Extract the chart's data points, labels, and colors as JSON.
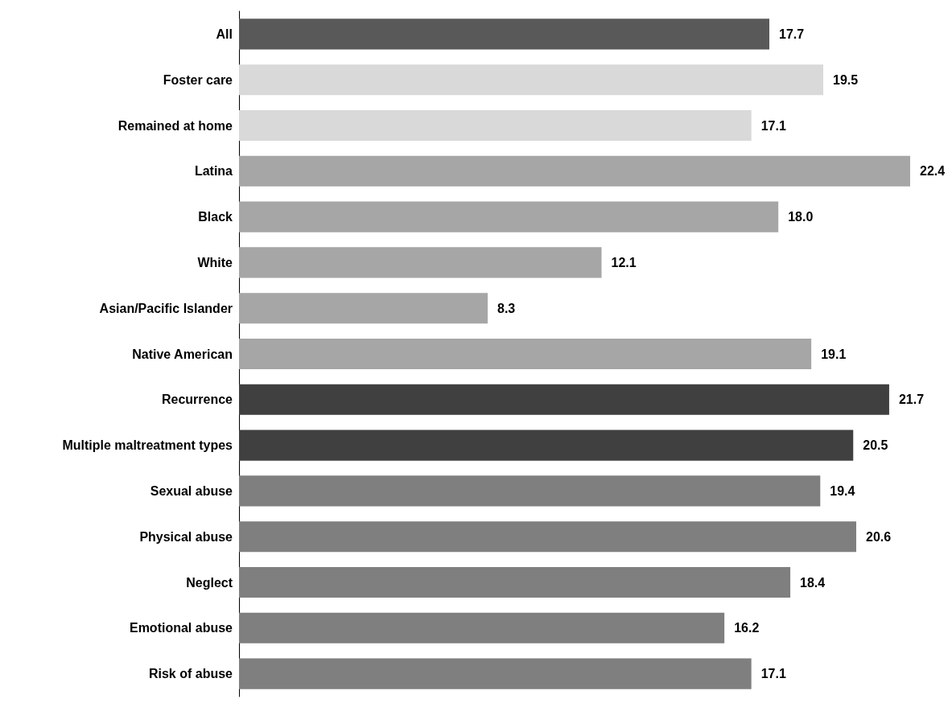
{
  "chart_data": {
    "type": "bar",
    "orientation": "horizontal",
    "categories": [
      "All",
      "Foster care",
      "Remained at home",
      "Latina",
      "Black",
      "White",
      "Asian/Pacific Islander",
      "Native American",
      "Recurrence",
      "Multiple maltreatment types",
      "Sexual abuse",
      "Physical abuse",
      "Neglect",
      "Emotional abuse",
      "Risk of abuse"
    ],
    "values": [
      17.7,
      19.5,
      17.1,
      22.4,
      18.0,
      12.1,
      8.3,
      19.1,
      21.7,
      20.5,
      19.4,
      20.6,
      18.4,
      16.2,
      17.1
    ],
    "colors": [
      "#595959",
      "#d9d9d9",
      "#d9d9d9",
      "#a6a6a6",
      "#a6a6a6",
      "#a6a6a6",
      "#a6a6a6",
      "#a6a6a6",
      "#404040",
      "#404040",
      "#7f7f7f",
      "#7f7f7f",
      "#7f7f7f",
      "#7f7f7f",
      "#7f7f7f"
    ],
    "value_labels": [
      "17.7",
      "19.5",
      "17.1",
      "22.4",
      "18.0",
      "12.1",
      "8.3",
      "19.1",
      "21.7",
      "20.5",
      "19.4",
      "20.6",
      "18.4",
      "16.2",
      "17.1"
    ]
  }
}
